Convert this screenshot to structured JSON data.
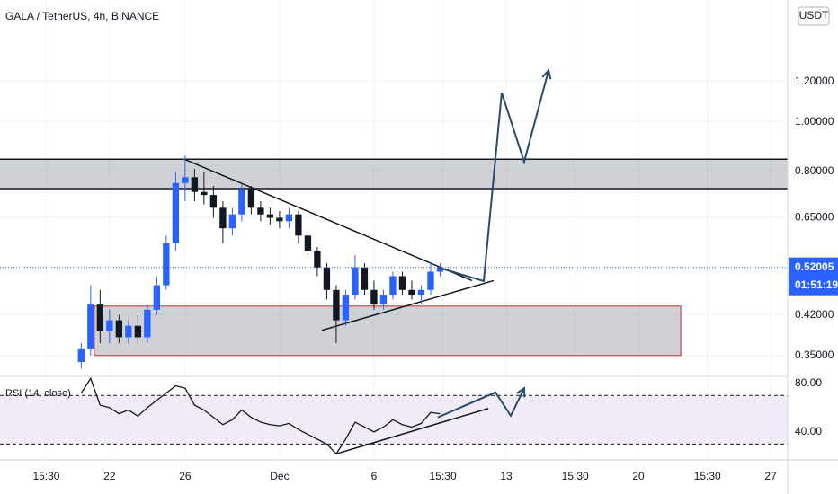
{
  "chart_data": {
    "type": "candlestick",
    "title": "GALA / TetherUS, 4h, BINANCE",
    "currency": "USDT",
    "log_scale": true,
    "up_color": "#2962ff",
    "down_color": "#131722",
    "x": [
      20.5,
      21,
      21.5,
      22,
      22.5,
      23,
      23.5,
      24,
      24.5,
      25,
      25.5,
      26,
      26.5,
      27,
      27.5,
      28,
      28.5,
      29,
      29.5,
      30,
      30.5,
      31,
      31.5,
      32,
      32.5,
      33,
      33.5,
      34,
      34.5,
      35,
      35.5,
      36,
      36.5,
      37,
      37.5,
      38,
      38.5,
      39,
      39.5
    ],
    "open": [
      0.34,
      0.36,
      0.44,
      0.39,
      0.41,
      0.38,
      0.4,
      0.38,
      0.43,
      0.48,
      0.58,
      0.76,
      0.78,
      0.73,
      0.72,
      0.68,
      0.62,
      0.66,
      0.74,
      0.68,
      0.66,
      0.65,
      0.64,
      0.66,
      0.6,
      0.56,
      0.52,
      0.47,
      0.41,
      0.46,
      0.52,
      0.47,
      0.44,
      0.46,
      0.5,
      0.47,
      0.46,
      0.47,
      0.51
    ],
    "high": [
      0.37,
      0.48,
      0.47,
      0.43,
      0.42,
      0.41,
      0.42,
      0.44,
      0.5,
      0.6,
      0.8,
      0.86,
      0.81,
      0.8,
      0.75,
      0.7,
      0.68,
      0.76,
      0.75,
      0.7,
      0.68,
      0.67,
      0.68,
      0.67,
      0.61,
      0.57,
      0.53,
      0.48,
      0.47,
      0.55,
      0.53,
      0.49,
      0.47,
      0.51,
      0.51,
      0.49,
      0.48,
      0.53,
      0.53
    ],
    "low": [
      0.33,
      0.35,
      0.37,
      0.37,
      0.37,
      0.37,
      0.37,
      0.37,
      0.42,
      0.47,
      0.56,
      0.7,
      0.7,
      0.69,
      0.65,
      0.58,
      0.6,
      0.64,
      0.66,
      0.64,
      0.63,
      0.62,
      0.62,
      0.58,
      0.55,
      0.5,
      0.45,
      0.37,
      0.4,
      0.45,
      0.46,
      0.43,
      0.43,
      0.45,
      0.46,
      0.45,
      0.44,
      0.46,
      0.5
    ],
    "close": [
      0.36,
      0.44,
      0.39,
      0.41,
      0.38,
      0.4,
      0.38,
      0.43,
      0.48,
      0.58,
      0.76,
      0.78,
      0.73,
      0.72,
      0.68,
      0.62,
      0.66,
      0.74,
      0.68,
      0.66,
      0.65,
      0.64,
      0.66,
      0.6,
      0.56,
      0.52,
      0.47,
      0.41,
      0.46,
      0.52,
      0.47,
      0.44,
      0.46,
      0.5,
      0.47,
      0.46,
      0.47,
      0.51,
      0.52
    ],
    "xlim": [
      16.2,
      57.9
    ],
    "xticks": [
      {
        "value": 18.65,
        "label": "15:30"
      },
      {
        "value": 22,
        "label": "22"
      },
      {
        "value": 26,
        "label": "26"
      },
      {
        "value": 31,
        "label": "Dec"
      },
      {
        "value": 36,
        "label": "6"
      },
      {
        "value": 39.65,
        "label": "15:30"
      },
      {
        "value": 43,
        "label": "13"
      },
      {
        "value": 46.65,
        "label": "15:30"
      },
      {
        "value": 50,
        "label": "20"
      },
      {
        "value": 53.65,
        "label": "15:30"
      },
      {
        "value": 57,
        "label": "27"
      }
    ],
    "ylim": [
      0.32,
      1.73
    ],
    "yticks": [
      {
        "value": 1.2,
        "label": "1.20000"
      },
      {
        "value": 1,
        "label": "1.00000"
      },
      {
        "value": 0.8,
        "label": "0.80000"
      },
      {
        "value": 0.65,
        "label": "0.65000"
      },
      {
        "value": 0.42,
        "label": "0.42000"
      },
      {
        "value": 0.35,
        "label": "0.35000"
      }
    ],
    "current_price": 0.52005,
    "countdown": "01:51:19",
    "resistance_lines": [
      0.846,
      0.741
    ],
    "support_box": {
      "x": [
        21.19,
        52.24
      ],
      "y": [
        0.35,
        0.437
      ]
    },
    "trendlines": [
      {
        "x": [
          25.95,
          41.19
        ],
        "y": [
          0.846,
          0.49
        ]
      },
      {
        "x": [
          33.24,
          42.33
        ],
        "y": [
          0.392,
          0.49
        ]
      }
    ],
    "projection": {
      "x": [
        39.38,
        41.81,
        42.76,
        43.95,
        45.24
      ],
      "y": [
        0.52,
        0.489,
        1.14,
        0.836,
        1.26
      ]
    },
    "rsi": {
      "label": "RSI (14, close)",
      "values": [
        72,
        84,
        62,
        60,
        55,
        58,
        53,
        60,
        66,
        72,
        78,
        76,
        62,
        58,
        52,
        46,
        50,
        58,
        52,
        48,
        46,
        45,
        47,
        42,
        38,
        34,
        30,
        22,
        34,
        48,
        44,
        40,
        44,
        50,
        46,
        44,
        47,
        56,
        55
      ],
      "ylim": [
        17,
        85
      ],
      "yticks": [
        {
          "value": 80,
          "label": "80.00"
        },
        {
          "value": 40,
          "label": "40.00"
        }
      ],
      "levels": [
        70,
        30
      ],
      "projection": {
        "x": [
          39.38,
          42.43,
          43.24,
          43.95
        ],
        "y": [
          52,
          72.6,
          53.3,
          76
        ]
      },
      "trendline": {
        "x": [
          34.05,
          42.05
        ],
        "y": [
          22.2,
          59.3
        ]
      }
    }
  }
}
